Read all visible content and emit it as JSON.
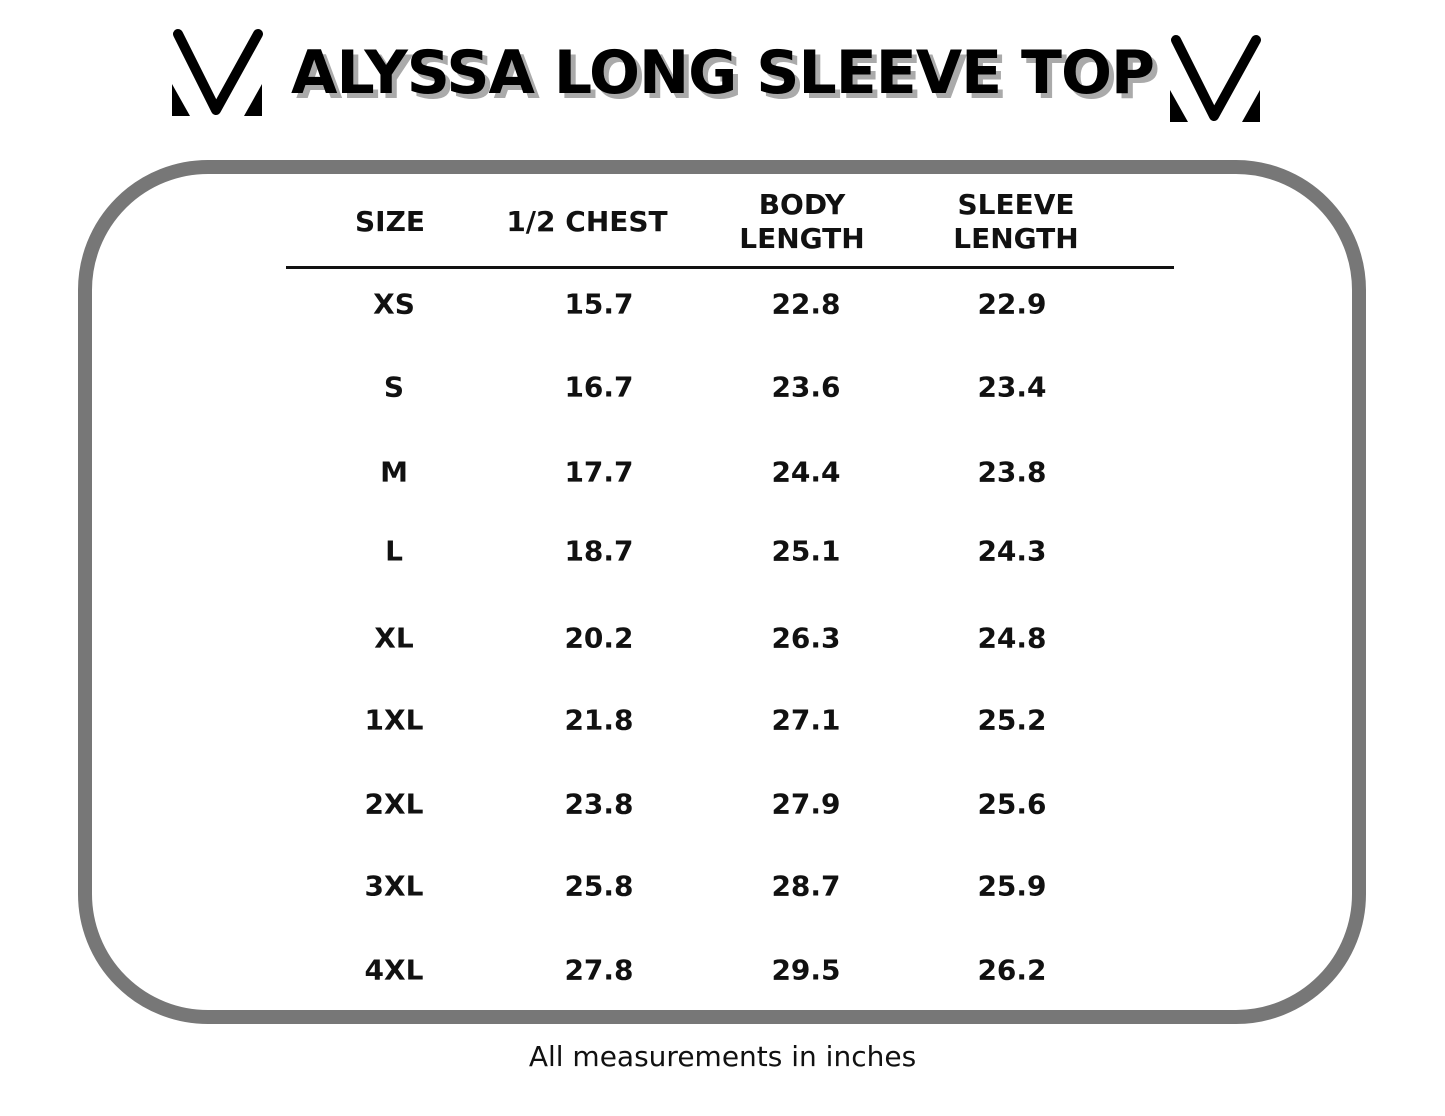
{
  "title": "ALYSSA LONG SLEEVE TOP",
  "logo": {
    "name": "V-logo",
    "color": "#000000"
  },
  "frame_color": "#777777",
  "table": {
    "headers": [
      [
        "SIZE"
      ],
      [
        "1/2 CHEST"
      ],
      [
        "BODY",
        "LENGTH"
      ],
      [
        "SLEEVE",
        "LENGTH"
      ]
    ],
    "rows": [
      [
        "XS",
        "15.7",
        "22.8",
        "22.9"
      ],
      [
        "S",
        "16.7",
        "23.6",
        "23.4"
      ],
      [
        "M",
        "17.7",
        "24.4",
        "23.8"
      ],
      [
        "L",
        "18.7",
        "25.1",
        "24.3"
      ],
      [
        "XL",
        "20.2",
        "26.3",
        "24.8"
      ],
      [
        "1XL",
        "21.8",
        "27.1",
        "25.2"
      ],
      [
        "2XL",
        "23.8",
        "27.9",
        "25.6"
      ],
      [
        "3XL",
        "25.8",
        "28.7",
        "25.9"
      ],
      [
        "4XL",
        "27.8",
        "29.5",
        "26.2"
      ]
    ]
  },
  "footnote": "All measurements in inches"
}
